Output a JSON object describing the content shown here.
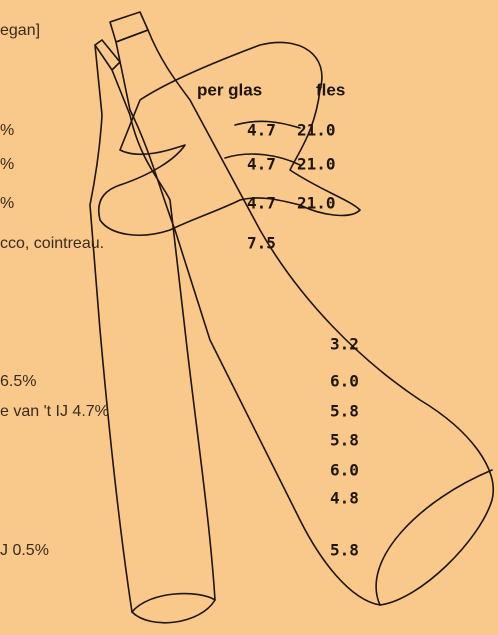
{
  "header": {
    "partial_title": "egan]",
    "col_glass": "per glas",
    "col_bottle": "fles"
  },
  "wines": [
    {
      "name": "%",
      "glass": "4.7",
      "bottle": "21.0"
    },
    {
      "name": "%",
      "glass": "4.7",
      "bottle": "21.0"
    },
    {
      "name": "%",
      "glass": "4.7",
      "bottle": "21.0"
    },
    {
      "name": "cco, cointreau.",
      "glass": "7.5"
    }
  ],
  "beers": [
    {
      "price": "3.2"
    },
    {
      "name": "6.5%",
      "price": "6.0"
    },
    {
      "name": "e van 't IJ 4.7%",
      "price": "5.8"
    },
    {
      "price": "5.8"
    },
    {
      "price": "6.0"
    },
    {
      "price": "4.8"
    },
    {
      "name": "J 0.5%",
      "price": "5.8"
    }
  ]
}
